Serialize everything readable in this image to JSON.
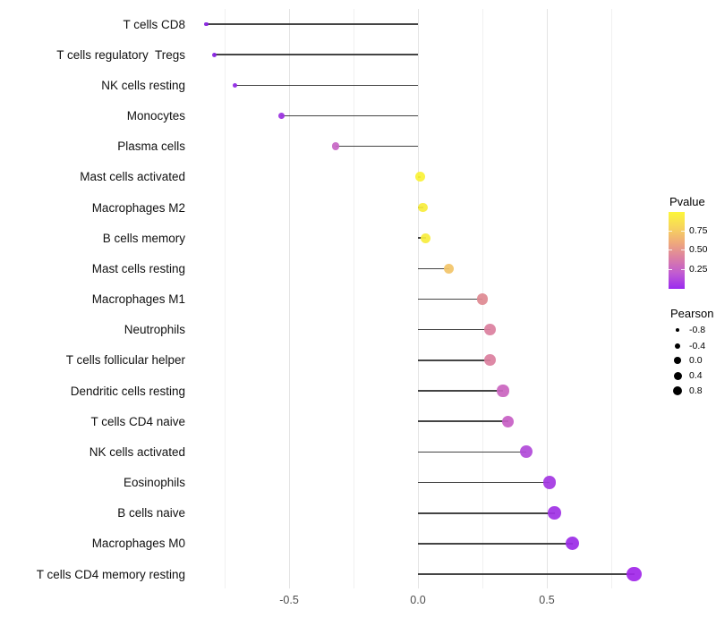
{
  "chart_data": {
    "type": "scatter",
    "subtype": "lollipop",
    "title": "",
    "xlabel": "",
    "ylabel": "",
    "orientation": "horizontal",
    "xlim": [
      -0.9,
      0.95
    ],
    "x_ticks": [
      -0.5,
      0.0,
      0.5
    ],
    "x_tick_labels": [
      "-0.5",
      "0.0",
      "0.5"
    ],
    "grid_minor": [
      -0.75,
      -0.25,
      0.25,
      0.75
    ],
    "grid_major": [
      -0.5,
      0.0,
      0.5
    ],
    "categories": [
      "T cells CD8",
      "T cells regulatory  Tregs",
      "NK cells resting",
      "Monocytes",
      "Plasma cells",
      "Mast cells activated",
      "Macrophages M2",
      "B cells memory",
      "Mast cells resting",
      "Macrophages M1",
      "Neutrophils",
      "T cells follicular helper",
      "Dendritic cells resting",
      "T cells CD4 naive",
      "NK cells activated",
      "Eosinophils",
      "B cells naive",
      "Macrophages M0",
      "T cells CD4 memory resting"
    ],
    "series": [
      {
        "name": "Pearson",
        "values": [
          -0.82,
          -0.79,
          -0.71,
          -0.53,
          -0.32,
          0.01,
          0.02,
          0.03,
          0.12,
          0.25,
          0.28,
          0.28,
          0.33,
          0.35,
          0.42,
          0.51,
          0.53,
          0.6,
          0.84
        ]
      }
    ],
    "point_colors": [
      "#8520DF",
      "#8822E2",
      "#9027E5",
      "#9B31E0",
      "#C767C5",
      "#FAF238",
      "#F8ED3D",
      "#F8ED3D",
      "#F2C569",
      "#DF8A92",
      "#DC809F",
      "#DC809F",
      "#CA65C0",
      "#C760C5",
      "#B24BD9",
      "#A438E2",
      "#A033E5",
      "#9C2DE7",
      "#A128E9"
    ],
    "stem_color": "#2a2a2a",
    "legend_position": "right"
  },
  "legend": {
    "pvalue": {
      "title": "Pvalue",
      "tick_labels": [
        "0.75",
        "0.50",
        "0.25"
      ],
      "gradient_stops": [
        "#FCF63A",
        "#F7D55C",
        "#EFA97B",
        "#DB7FA4",
        "#C05BD2",
        "#9B2BEF"
      ]
    },
    "pearson": {
      "title": "Pearson",
      "items": [
        {
          "label": "-0.8",
          "radius": 2.0
        },
        {
          "label": "-0.4",
          "radius": 3.1
        },
        {
          "label": "0.0",
          "radius": 3.9
        },
        {
          "label": "0.4",
          "radius": 4.5
        },
        {
          "label": "0.8",
          "radius": 5.0
        }
      ]
    }
  }
}
